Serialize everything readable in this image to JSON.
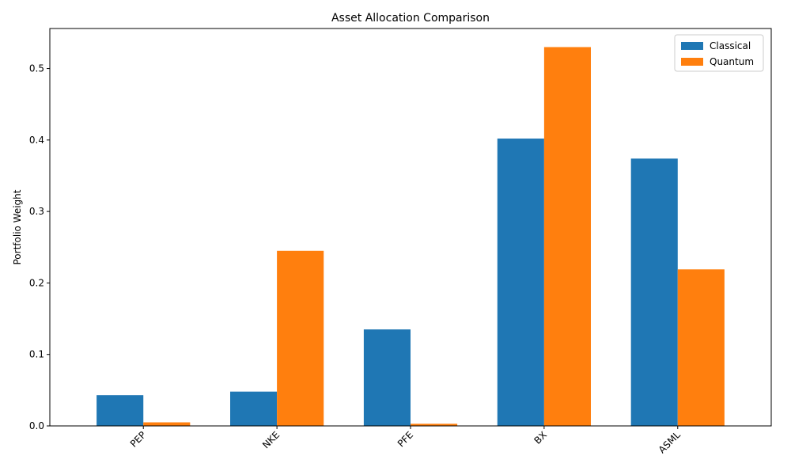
{
  "chart_data": {
    "type": "bar",
    "title": "Asset Allocation Comparison",
    "xlabel": "",
    "ylabel": "Portfolio Weight",
    "categories": [
      "PEP",
      "NKE",
      "PFE",
      "BX",
      "ASML"
    ],
    "series": [
      {
        "name": "Classical",
        "color": "#1f77b4",
        "values": [
          0.043,
          0.048,
          0.135,
          0.402,
          0.374
        ]
      },
      {
        "name": "Quantum",
        "color": "#ff7f0e",
        "values": [
          0.005,
          0.245,
          0.003,
          0.53,
          0.219
        ]
      }
    ],
    "ylim": [
      0,
      0.556
    ],
    "yticks": [
      "0.0",
      "0.1",
      "0.2",
      "0.3",
      "0.4",
      "0.5"
    ],
    "grid": false,
    "legend_position": "top-right",
    "xtick_rotation": 45
  }
}
